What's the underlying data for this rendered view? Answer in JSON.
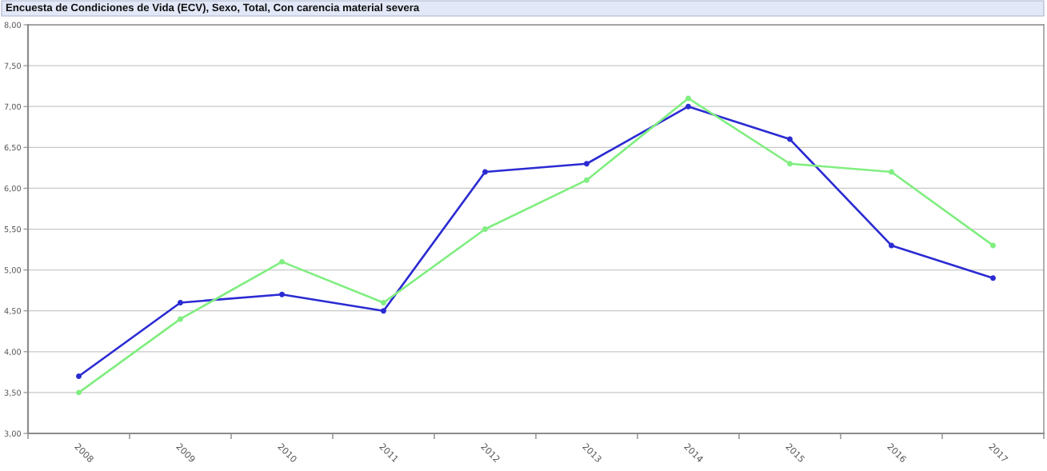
{
  "chart_data": {
    "type": "line",
    "title": "Encuesta de Condiciones de Vida (ECV), Sexo, Total, Con carencia material severa",
    "categories": [
      "2008",
      "2009",
      "2010",
      "2011",
      "2012",
      "2013",
      "2014",
      "2015",
      "2016",
      "2017"
    ],
    "series": [
      {
        "color": "#2b2bd3",
        "values": [
          3.7,
          4.6,
          4.7,
          4.5,
          6.2,
          6.3,
          7.0,
          6.6,
          5.3,
          4.9
        ]
      },
      {
        "color": "#80ee80",
        "values": [
          3.5,
          4.4,
          5.1,
          4.6,
          5.5,
          6.1,
          7.1,
          6.3,
          6.2,
          5.3
        ]
      }
    ],
    "ylim": [
      3,
      8
    ],
    "yticks": [
      {
        "value": 3,
        "label": "3,00"
      },
      {
        "value": 3.5,
        "label": "3,50"
      },
      {
        "value": 4,
        "label": "4,00"
      },
      {
        "value": 4.5,
        "label": "4,50"
      },
      {
        "value": 5,
        "label": "5,00"
      },
      {
        "value": 5.5,
        "label": "5,50"
      },
      {
        "value": 6,
        "label": "6,00"
      },
      {
        "value": 6.5,
        "label": "6,50"
      },
      {
        "value": 7,
        "label": "7,00"
      },
      {
        "value": 7.5,
        "label": "7,50"
      },
      {
        "value": 8,
        "label": "8,00"
      }
    ],
    "grid": "y",
    "marker": "circle",
    "line_style": "solid"
  }
}
